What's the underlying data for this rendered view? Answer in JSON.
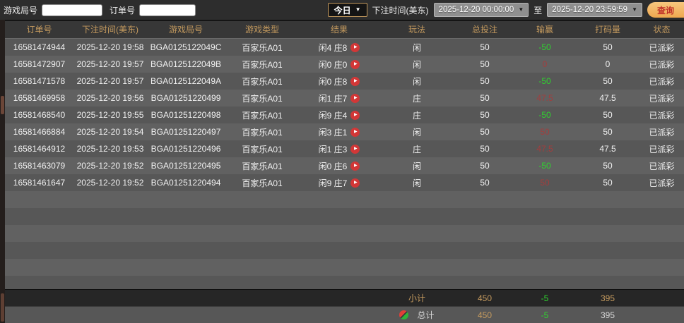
{
  "filters": {
    "game_round_label": "游戏局号",
    "game_round_value": "",
    "order_no_label": "订单号",
    "order_no_value": "",
    "today_dropdown": "今日",
    "bet_time_label": "下注时间(美东)",
    "date_from": "2025-12-20 00:00:00",
    "to_label": "至",
    "date_to": "2025-12-20 23:59:59",
    "search_button": "查询"
  },
  "icons": {
    "chevron_down": "▼",
    "play": "▶",
    "total_badge": "red-green-split-circle"
  },
  "table": {
    "columns": [
      "订单号",
      "下注时间(美东)",
      "游戏局号",
      "游戏类型",
      "结果",
      "玩法",
      "总投注",
      "输赢",
      "打码量",
      "状态"
    ],
    "rows": [
      {
        "order_id": "16581474944",
        "bet_time": "2025-12-20 19:58",
        "round_id": "BGA0125122049C",
        "game_type": "百家乐A01",
        "result": "闲4 庄8",
        "play": "闲",
        "total_bet": "50",
        "win_loss": "-50",
        "win_loss_color": "green",
        "turnover": "50",
        "status": "已派彩"
      },
      {
        "order_id": "16581472907",
        "bet_time": "2025-12-20 19:57",
        "round_id": "BGA0125122049B",
        "game_type": "百家乐A01",
        "result": "闲0 庄0",
        "play": "闲",
        "total_bet": "50",
        "win_loss": "0",
        "win_loss_color": "red",
        "turnover": "0",
        "status": "已派彩"
      },
      {
        "order_id": "16581471578",
        "bet_time": "2025-12-20 19:57",
        "round_id": "BGA0125122049A",
        "game_type": "百家乐A01",
        "result": "闲0 庄8",
        "play": "闲",
        "total_bet": "50",
        "win_loss": "-50",
        "win_loss_color": "green",
        "turnover": "50",
        "status": "已派彩"
      },
      {
        "order_id": "16581469958",
        "bet_time": "2025-12-20 19:56",
        "round_id": "BGA01251220499",
        "game_type": "百家乐A01",
        "result": "闲1 庄7",
        "play": "庄",
        "total_bet": "50",
        "win_loss": "47.5",
        "win_loss_color": "red",
        "turnover": "47.5",
        "status": "已派彩"
      },
      {
        "order_id": "16581468540",
        "bet_time": "2025-12-20 19:55",
        "round_id": "BGA01251220498",
        "game_type": "百家乐A01",
        "result": "闲9 庄4",
        "play": "庄",
        "total_bet": "50",
        "win_loss": "-50",
        "win_loss_color": "green",
        "turnover": "50",
        "status": "已派彩"
      },
      {
        "order_id": "16581466884",
        "bet_time": "2025-12-20 19:54",
        "round_id": "BGA01251220497",
        "game_type": "百家乐A01",
        "result": "闲3 庄1",
        "play": "闲",
        "total_bet": "50",
        "win_loss": "50",
        "win_loss_color": "red",
        "turnover": "50",
        "status": "已派彩"
      },
      {
        "order_id": "16581464912",
        "bet_time": "2025-12-20 19:53",
        "round_id": "BGA01251220496",
        "game_type": "百家乐A01",
        "result": "闲1 庄3",
        "play": "庄",
        "total_bet": "50",
        "win_loss": "47.5",
        "win_loss_color": "red",
        "turnover": "47.5",
        "status": "已派彩"
      },
      {
        "order_id": "16581463079",
        "bet_time": "2025-12-20 19:52",
        "round_id": "BGA01251220495",
        "game_type": "百家乐A01",
        "result": "闲0 庄6",
        "play": "闲",
        "total_bet": "50",
        "win_loss": "-50",
        "win_loss_color": "green",
        "turnover": "50",
        "status": "已派彩"
      },
      {
        "order_id": "16581461647",
        "bet_time": "2025-12-20 19:52",
        "round_id": "BGA01251220494",
        "game_type": "百家乐A01",
        "result": "闲9 庄7",
        "play": "闲",
        "total_bet": "50",
        "win_loss": "50",
        "win_loss_color": "red",
        "turnover": "50",
        "status": "已派彩"
      }
    ],
    "subtotal": {
      "label": "小计",
      "total_bet": "450",
      "win_loss": "-5",
      "turnover": "395"
    },
    "total": {
      "label": "总计",
      "total_bet": "450",
      "win_loss": "-5",
      "turnover": "395"
    }
  },
  "colors": {
    "gold": "#c49a5e",
    "green": "#2fd32f",
    "red": "#a33d3d",
    "row-dark": "#575757",
    "row-light": "#616161",
    "topbar-bg": "#2d2d2d",
    "header-bg": "#373737",
    "subtotal-bg": "#262626",
    "accent-button": "#efa84f",
    "button-text": "#c03028",
    "play-red": "#d23737"
  }
}
